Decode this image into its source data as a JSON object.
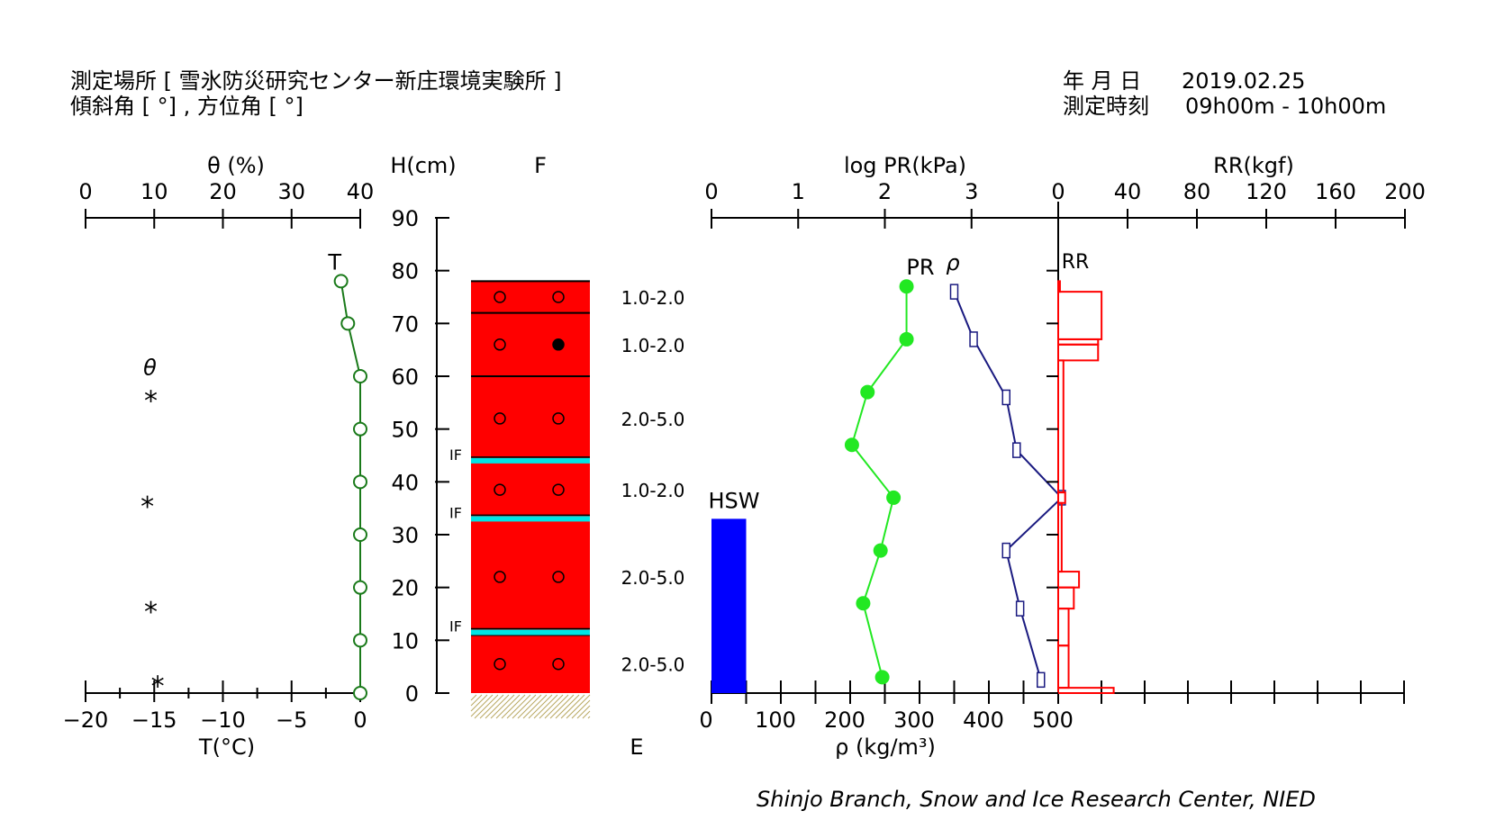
{
  "header": {
    "location_label": "測定場所 [ 雪氷防災研究センター新庄環境実験所 ]",
    "angle_label": "傾斜角 [ °] , 方位角 [ °]",
    "date_label": "年 月 日",
    "date_value": "2019.02.25",
    "time_label": "測定時刻",
    "time_value": "09h00m - 10h00m"
  },
  "footer": {
    "credit": "Shinjo Branch, Snow and Ice Research Center, NIED"
  },
  "colors": {
    "temperature": "#1a7a1a",
    "layer": "#ff0000",
    "ice_layer": "#00e5e5",
    "hsw": "#0000ff",
    "pr": "#22e822",
    "density": "#1a1a80",
    "rr": "#ff0000",
    "ground": "#b8a860"
  },
  "chart_data": [
    {
      "type": "line",
      "panel": "temperature-theta",
      "top_axis": {
        "label": "θ (%)",
        "ticks": [
          "0",
          "10",
          "20",
          "30",
          "40"
        ],
        "range": [
          0,
          40
        ]
      },
      "bottom_axis": {
        "label": "T(°C)",
        "ticks": [
          "−20",
          "−15",
          "−10",
          "−5",
          "0"
        ],
        "range": [
          -20,
          0
        ]
      },
      "y_axis": {
        "label": "H(cm)",
        "ticks": [
          "0",
          "10",
          "20",
          "30",
          "40",
          "50",
          "60",
          "70",
          "80",
          "90"
        ],
        "range": [
          0,
          90
        ]
      },
      "series": [
        {
          "name": "T",
          "marker": "open-circle",
          "points": [
            [
              -1.4,
              78
            ],
            [
              -0.9,
              70
            ],
            [
              0,
              60
            ],
            [
              0,
              50
            ],
            [
              0,
              40
            ],
            [
              0,
              30
            ],
            [
              0,
              20
            ],
            [
              0,
              10
            ],
            [
              0,
              0
            ]
          ]
        },
        {
          "name": "θ",
          "marker": "asterisk",
          "points": [
            [
              9.5,
              56
            ],
            [
              9.0,
              36
            ],
            [
              9.5,
              16
            ],
            [
              10.5,
              2
            ]
          ]
        }
      ]
    },
    {
      "type": "table",
      "panel": "snow-layers",
      "column_label": "F",
      "bottom_label": "E",
      "total_height": 78,
      "layers": [
        {
          "top": 78,
          "bottom": 72,
          "symbols": [
            "open",
            "open"
          ],
          "grain_size": "1.0-2.0"
        },
        {
          "top": 72,
          "bottom": 60,
          "symbols": [
            "open",
            "filled"
          ],
          "grain_size": "1.0-2.0"
        },
        {
          "top": 60,
          "bottom": 44,
          "symbols": [
            "open",
            "open"
          ],
          "grain_size": "2.0-5.0"
        },
        {
          "top": 44,
          "bottom": 33,
          "symbols": [
            "open",
            "open"
          ],
          "grain_size": "1.0-2.0"
        },
        {
          "top": 33,
          "bottom": 11,
          "symbols": [
            "open",
            "open"
          ],
          "grain_size": "2.0-5.0"
        },
        {
          "top": 11,
          "bottom": 0,
          "symbols": [
            "open",
            "open"
          ],
          "grain_size": "2.0-5.0"
        }
      ],
      "ice_layers": [
        {
          "height": 44,
          "label": "IF"
        },
        {
          "height": 33,
          "label": "IF"
        },
        {
          "height": 11.5,
          "label": "IF"
        }
      ]
    },
    {
      "type": "line",
      "panel": "pressure-density",
      "top_axis": {
        "label": "log PR(kPa)",
        "ticks": [
          "0",
          "1",
          "2",
          "3"
        ],
        "range": [
          0,
          4
        ]
      },
      "bottom_axis": {
        "label": "ρ (kg/m³)",
        "ticks": [
          "0",
          "100",
          "200",
          "300",
          "400",
          "500"
        ],
        "range": [
          0,
          500
        ]
      },
      "hsw": {
        "label": "HSW",
        "height": 33,
        "width_density_units": 50
      },
      "series": [
        {
          "name": "PR",
          "marker": "filled-circle",
          "points": [
            [
              2.25,
              77
            ],
            [
              2.25,
              67
            ],
            [
              1.8,
              57
            ],
            [
              1.62,
              47
            ],
            [
              2.1,
              37
            ],
            [
              1.95,
              27
            ],
            [
              1.75,
              17
            ],
            [
              1.97,
              3
            ]
          ]
        },
        {
          "name": "ρ",
          "marker": "open-square",
          "points": [
            [
              350,
              76
            ],
            [
              378,
              67
            ],
            [
              425,
              56
            ],
            [
              440,
              46
            ],
            [
              505,
              37
            ],
            [
              425,
              27
            ],
            [
              445,
              16
            ],
            [
              475,
              2.5
            ]
          ]
        }
      ]
    },
    {
      "type": "bar",
      "panel": "ram-resistance",
      "top_axis": {
        "label": "RR(kgf)",
        "ticks": [
          "0",
          "40",
          "80",
          "120",
          "160",
          "200"
        ],
        "range": [
          0,
          200
        ]
      },
      "series_name": "RR",
      "segments": [
        {
          "top": 78,
          "bottom": 76,
          "value": 1
        },
        {
          "top": 76,
          "bottom": 67,
          "value": 25
        },
        {
          "top": 67,
          "bottom": 66,
          "value": 23
        },
        {
          "top": 66,
          "bottom": 63,
          "value": 23
        },
        {
          "top": 63,
          "bottom": 38,
          "value": 3
        },
        {
          "top": 38,
          "bottom": 36,
          "value": 4
        },
        {
          "top": 36,
          "bottom": 23,
          "value": 2
        },
        {
          "top": 23,
          "bottom": 20,
          "value": 12
        },
        {
          "top": 20,
          "bottom": 16,
          "value": 9
        },
        {
          "top": 16,
          "bottom": 9,
          "value": 6
        },
        {
          "top": 9,
          "bottom": 1,
          "value": 6
        },
        {
          "top": 1,
          "bottom": 0,
          "value": 32
        }
      ]
    }
  ]
}
